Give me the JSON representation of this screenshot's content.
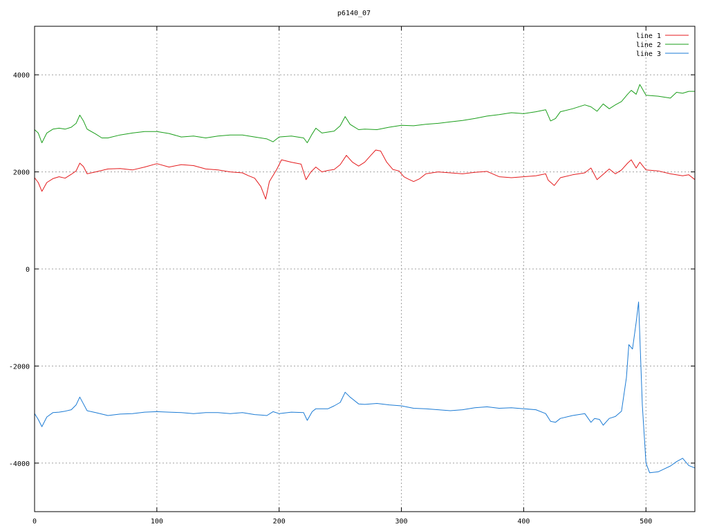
{
  "chart_data": {
    "type": "line",
    "title": "p6140_07",
    "xlabel": "",
    "ylabel": "",
    "xlim": [
      0,
      540
    ],
    "ylim": [
      -5000,
      5000
    ],
    "x_ticks": [
      0,
      100,
      200,
      300,
      400,
      500
    ],
    "y_ticks": [
      -4000,
      -2000,
      0,
      2000,
      4000
    ],
    "x_tick_labels": [
      "0",
      "100",
      "200",
      "300",
      "400",
      "500"
    ],
    "y_tick_labels": [
      "-4000",
      "-2000",
      "0",
      "2000",
      "4000"
    ],
    "grid": true,
    "legend_position": "top-right",
    "series": [
      {
        "name": "line 1",
        "color": "#e41a1c",
        "points": [
          [
            0,
            1880
          ],
          [
            3,
            1780
          ],
          [
            6,
            1600
          ],
          [
            10,
            1780
          ],
          [
            15,
            1860
          ],
          [
            20,
            1900
          ],
          [
            25,
            1870
          ],
          [
            30,
            1950
          ],
          [
            34,
            2020
          ],
          [
            37,
            2180
          ],
          [
            40,
            2110
          ],
          [
            43,
            1960
          ],
          [
            50,
            2000
          ],
          [
            60,
            2060
          ],
          [
            70,
            2070
          ],
          [
            80,
            2040
          ],
          [
            90,
            2100
          ],
          [
            100,
            2170
          ],
          [
            110,
            2100
          ],
          [
            120,
            2150
          ],
          [
            130,
            2130
          ],
          [
            140,
            2060
          ],
          [
            150,
            2040
          ],
          [
            160,
            2000
          ],
          [
            170,
            1980
          ],
          [
            175,
            1920
          ],
          [
            180,
            1870
          ],
          [
            185,
            1700
          ],
          [
            189,
            1440
          ],
          [
            192,
            1800
          ],
          [
            198,
            2050
          ],
          [
            202,
            2250
          ],
          [
            210,
            2200
          ],
          [
            218,
            2160
          ],
          [
            222,
            1840
          ],
          [
            226,
            2000
          ],
          [
            230,
            2100
          ],
          [
            235,
            2000
          ],
          [
            240,
            2030
          ],
          [
            245,
            2050
          ],
          [
            250,
            2150
          ],
          [
            255,
            2340
          ],
          [
            260,
            2200
          ],
          [
            265,
            2120
          ],
          [
            270,
            2200
          ],
          [
            275,
            2340
          ],
          [
            279,
            2450
          ],
          [
            283,
            2430
          ],
          [
            288,
            2200
          ],
          [
            293,
            2050
          ],
          [
            298,
            2020
          ],
          [
            302,
            1900
          ],
          [
            305,
            1860
          ],
          [
            310,
            1800
          ],
          [
            315,
            1860
          ],
          [
            320,
            1960
          ],
          [
            330,
            2000
          ],
          [
            340,
            1980
          ],
          [
            350,
            1960
          ],
          [
            360,
            1990
          ],
          [
            370,
            2010
          ],
          [
            380,
            1900
          ],
          [
            390,
            1880
          ],
          [
            400,
            1900
          ],
          [
            410,
            1920
          ],
          [
            418,
            1960
          ],
          [
            420,
            1830
          ],
          [
            425,
            1720
          ],
          [
            430,
            1880
          ],
          [
            440,
            1940
          ],
          [
            450,
            1980
          ],
          [
            455,
            2080
          ],
          [
            460,
            1840
          ],
          [
            465,
            1950
          ],
          [
            470,
            2060
          ],
          [
            475,
            1960
          ],
          [
            480,
            2040
          ],
          [
            485,
            2180
          ],
          [
            488,
            2250
          ],
          [
            492,
            2080
          ],
          [
            495,
            2200
          ],
          [
            500,
            2040
          ],
          [
            510,
            2020
          ],
          [
            520,
            1960
          ],
          [
            530,
            1920
          ],
          [
            535,
            1940
          ],
          [
            540,
            1840
          ]
        ]
      },
      {
        "name": "line 2",
        "color": "#1a9e1a",
        "points": [
          [
            0,
            2870
          ],
          [
            3,
            2800
          ],
          [
            6,
            2600
          ],
          [
            10,
            2800
          ],
          [
            15,
            2880
          ],
          [
            20,
            2900
          ],
          [
            25,
            2880
          ],
          [
            30,
            2920
          ],
          [
            34,
            3000
          ],
          [
            37,
            3170
          ],
          [
            40,
            3050
          ],
          [
            43,
            2880
          ],
          [
            50,
            2780
          ],
          [
            55,
            2700
          ],
          [
            60,
            2700
          ],
          [
            70,
            2760
          ],
          [
            80,
            2800
          ],
          [
            90,
            2830
          ],
          [
            100,
            2830
          ],
          [
            110,
            2790
          ],
          [
            120,
            2720
          ],
          [
            130,
            2740
          ],
          [
            140,
            2700
          ],
          [
            150,
            2740
          ],
          [
            160,
            2760
          ],
          [
            170,
            2760
          ],
          [
            180,
            2720
          ],
          [
            190,
            2680
          ],
          [
            195,
            2620
          ],
          [
            200,
            2720
          ],
          [
            210,
            2740
          ],
          [
            220,
            2700
          ],
          [
            223,
            2600
          ],
          [
            227,
            2780
          ],
          [
            230,
            2900
          ],
          [
            235,
            2800
          ],
          [
            240,
            2820
          ],
          [
            245,
            2840
          ],
          [
            250,
            2950
          ],
          [
            254,
            3140
          ],
          [
            258,
            2980
          ],
          [
            265,
            2870
          ],
          [
            270,
            2880
          ],
          [
            280,
            2870
          ],
          [
            290,
            2920
          ],
          [
            300,
            2960
          ],
          [
            310,
            2950
          ],
          [
            320,
            2980
          ],
          [
            330,
            3000
          ],
          [
            340,
            3030
          ],
          [
            350,
            3060
          ],
          [
            360,
            3100
          ],
          [
            370,
            3150
          ],
          [
            380,
            3180
          ],
          [
            390,
            3220
          ],
          [
            400,
            3200
          ],
          [
            410,
            3240
          ],
          [
            418,
            3280
          ],
          [
            422,
            3050
          ],
          [
            426,
            3100
          ],
          [
            430,
            3240
          ],
          [
            440,
            3300
          ],
          [
            450,
            3380
          ],
          [
            455,
            3340
          ],
          [
            460,
            3250
          ],
          [
            465,
            3400
          ],
          [
            470,
            3300
          ],
          [
            475,
            3380
          ],
          [
            480,
            3450
          ],
          [
            485,
            3600
          ],
          [
            488,
            3680
          ],
          [
            492,
            3600
          ],
          [
            495,
            3800
          ],
          [
            500,
            3580
          ],
          [
            510,
            3560
          ],
          [
            520,
            3520
          ],
          [
            525,
            3640
          ],
          [
            530,
            3620
          ],
          [
            535,
            3660
          ],
          [
            540,
            3660
          ]
        ]
      },
      {
        "name": "line 3",
        "color": "#1a7ad4",
        "points": [
          [
            0,
            -2980
          ],
          [
            3,
            -3100
          ],
          [
            6,
            -3250
          ],
          [
            10,
            -3050
          ],
          [
            15,
            -2960
          ],
          [
            20,
            -2950
          ],
          [
            25,
            -2930
          ],
          [
            30,
            -2900
          ],
          [
            34,
            -2800
          ],
          [
            37,
            -2640
          ],
          [
            40,
            -2780
          ],
          [
            43,
            -2920
          ],
          [
            50,
            -2960
          ],
          [
            60,
            -3020
          ],
          [
            70,
            -2990
          ],
          [
            80,
            -2980
          ],
          [
            90,
            -2950
          ],
          [
            100,
            -2940
          ],
          [
            110,
            -2950
          ],
          [
            120,
            -2960
          ],
          [
            130,
            -2980
          ],
          [
            140,
            -2960
          ],
          [
            150,
            -2960
          ],
          [
            160,
            -2980
          ],
          [
            170,
            -2960
          ],
          [
            180,
            -3000
          ],
          [
            190,
            -3020
          ],
          [
            195,
            -2940
          ],
          [
            200,
            -2980
          ],
          [
            210,
            -2950
          ],
          [
            220,
            -2960
          ],
          [
            223,
            -3120
          ],
          [
            227,
            -2940
          ],
          [
            230,
            -2880
          ],
          [
            240,
            -2880
          ],
          [
            245,
            -2820
          ],
          [
            250,
            -2750
          ],
          [
            254,
            -2540
          ],
          [
            258,
            -2640
          ],
          [
            265,
            -2780
          ],
          [
            270,
            -2790
          ],
          [
            280,
            -2770
          ],
          [
            290,
            -2800
          ],
          [
            300,
            -2820
          ],
          [
            310,
            -2870
          ],
          [
            320,
            -2880
          ],
          [
            330,
            -2900
          ],
          [
            340,
            -2920
          ],
          [
            350,
            -2900
          ],
          [
            360,
            -2860
          ],
          [
            370,
            -2840
          ],
          [
            380,
            -2870
          ],
          [
            390,
            -2860
          ],
          [
            400,
            -2880
          ],
          [
            410,
            -2900
          ],
          [
            418,
            -2980
          ],
          [
            422,
            -3140
          ],
          [
            426,
            -3160
          ],
          [
            430,
            -3080
          ],
          [
            440,
            -3020
          ],
          [
            450,
            -2980
          ],
          [
            455,
            -3160
          ],
          [
            458,
            -3080
          ],
          [
            462,
            -3100
          ],
          [
            465,
            -3220
          ],
          [
            470,
            -3080
          ],
          [
            475,
            -3040
          ],
          [
            480,
            -2930
          ],
          [
            484,
            -2240
          ],
          [
            486,
            -1560
          ],
          [
            489,
            -1650
          ],
          [
            492,
            -1100
          ],
          [
            494,
            -680
          ],
          [
            497,
            -2800
          ],
          [
            500,
            -4000
          ],
          [
            503,
            -4200
          ],
          [
            510,
            -4180
          ],
          [
            515,
            -4120
          ],
          [
            520,
            -4060
          ],
          [
            525,
            -3970
          ],
          [
            530,
            -3900
          ],
          [
            535,
            -4050
          ],
          [
            540,
            -4100
          ]
        ]
      }
    ]
  }
}
